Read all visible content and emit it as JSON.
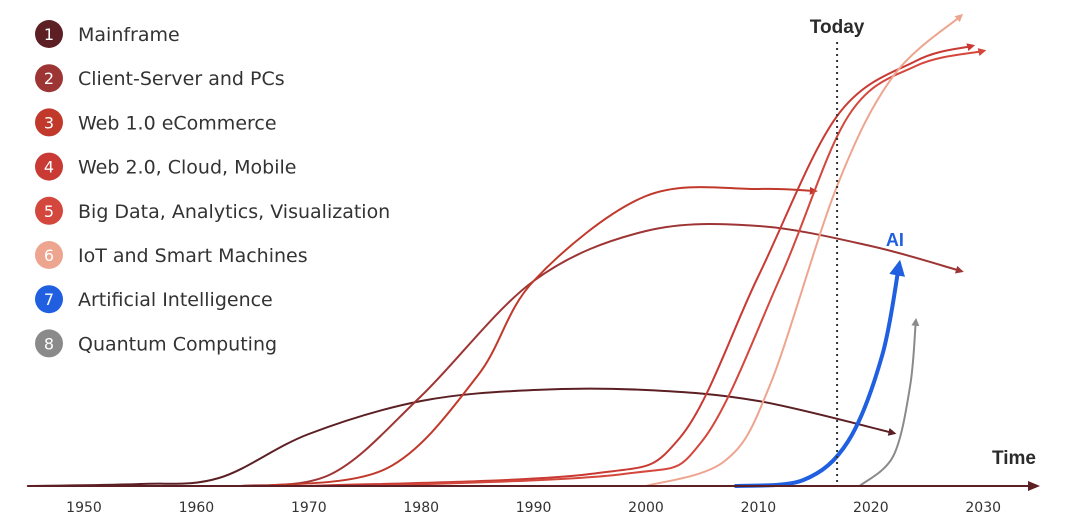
{
  "chart_data": {
    "type": "line",
    "title": "",
    "xlabel": "Time",
    "ylabel": "",
    "xlim": [
      1945,
      2035
    ],
    "x_ticks": [
      1950,
      1960,
      1970,
      1980,
      1990,
      2000,
      2010,
      2020,
      2030
    ],
    "today": {
      "label": "Today",
      "year": 2017
    },
    "legend_position": "top-left",
    "legend": [
      {
        "num": "1",
        "label": "Mainframe",
        "color": "#5c1f24"
      },
      {
        "num": "2",
        "label": "Client-Server and PCs",
        "color": "#9e3535"
      },
      {
        "num": "3",
        "label": "Web 1.0 eCommerce",
        "color": "#c0392b"
      },
      {
        "num": "4",
        "label": "Web 2.0, Cloud, Mobile",
        "color": "#c83a33"
      },
      {
        "num": "5",
        "label": "Big Data, Analytics, Visualization",
        "color": "#d4473c"
      },
      {
        "num": "6",
        "label": "IoT and Smart Machines",
        "color": "#eea590"
      },
      {
        "num": "7",
        "label": "Artificial Intelligence",
        "color": "#1f5fe0"
      },
      {
        "num": "8",
        "label": "Quantum Computing",
        "color": "#8a8a8a"
      }
    ],
    "series": [
      {
        "name": "Mainframe",
        "color": "#5c1f24",
        "points": [
          [
            1945,
            0
          ],
          [
            1955,
            2
          ],
          [
            1962,
            8
          ],
          [
            1970,
            52
          ],
          [
            1980,
            85
          ],
          [
            1990,
            96
          ],
          [
            2000,
            96
          ],
          [
            2010,
            85
          ],
          [
            2022,
            53
          ]
        ]
      },
      {
        "name": "Client-Server and PCs",
        "color": "#9e3535",
        "points": [
          [
            1964,
            0
          ],
          [
            1972,
            12
          ],
          [
            1980,
            90
          ],
          [
            1990,
            205
          ],
          [
            2000,
            255
          ],
          [
            2010,
            260
          ],
          [
            2020,
            240
          ],
          [
            2028,
            215
          ]
        ]
      },
      {
        "name": "Web 1.0 eCommerce",
        "color": "#c0392b",
        "points": [
          [
            1966,
            0
          ],
          [
            1977,
            18
          ],
          [
            1985,
            110
          ],
          [
            1990,
            205
          ],
          [
            2000,
            290
          ],
          [
            2010,
            297
          ],
          [
            2015,
            295
          ]
        ]
      },
      {
        "name": "Web 2.0, Cloud, Mobile",
        "color": "#c83a33",
        "points": [
          [
            1970,
            0
          ],
          [
            1995,
            12
          ],
          [
            2003,
            48
          ],
          [
            2010,
            210
          ],
          [
            2017,
            370
          ],
          [
            2024,
            425
          ],
          [
            2029,
            440
          ]
        ]
      },
      {
        "name": "Big Data, Analytics, Visualization",
        "color": "#d4473c",
        "points": [
          [
            1975,
            0
          ],
          [
            1998,
            12
          ],
          [
            2005,
            45
          ],
          [
            2012,
            210
          ],
          [
            2018,
            370
          ],
          [
            2024,
            420
          ],
          [
            2030,
            435
          ]
        ]
      },
      {
        "name": "IoT and Smart Machines",
        "color": "#eea590",
        "points": [
          [
            2000,
            0
          ],
          [
            2007,
            25
          ],
          [
            2011,
            100
          ],
          [
            2017,
            300
          ],
          [
            2022,
            410
          ],
          [
            2028,
            470
          ]
        ]
      },
      {
        "name": "Artificial Intelligence",
        "color": "#1f5fe0",
        "points": [
          [
            2008,
            0
          ],
          [
            2014,
            6
          ],
          [
            2018,
            45
          ],
          [
            2021,
            130
          ],
          [
            2022.5,
            220
          ]
        ],
        "label": "AI"
      },
      {
        "name": "Quantum Computing",
        "color": "#8a8a8a",
        "points": [
          [
            2019,
            0
          ],
          [
            2022,
            30
          ],
          [
            2023.5,
            100
          ],
          [
            2024,
            165
          ]
        ]
      }
    ]
  }
}
